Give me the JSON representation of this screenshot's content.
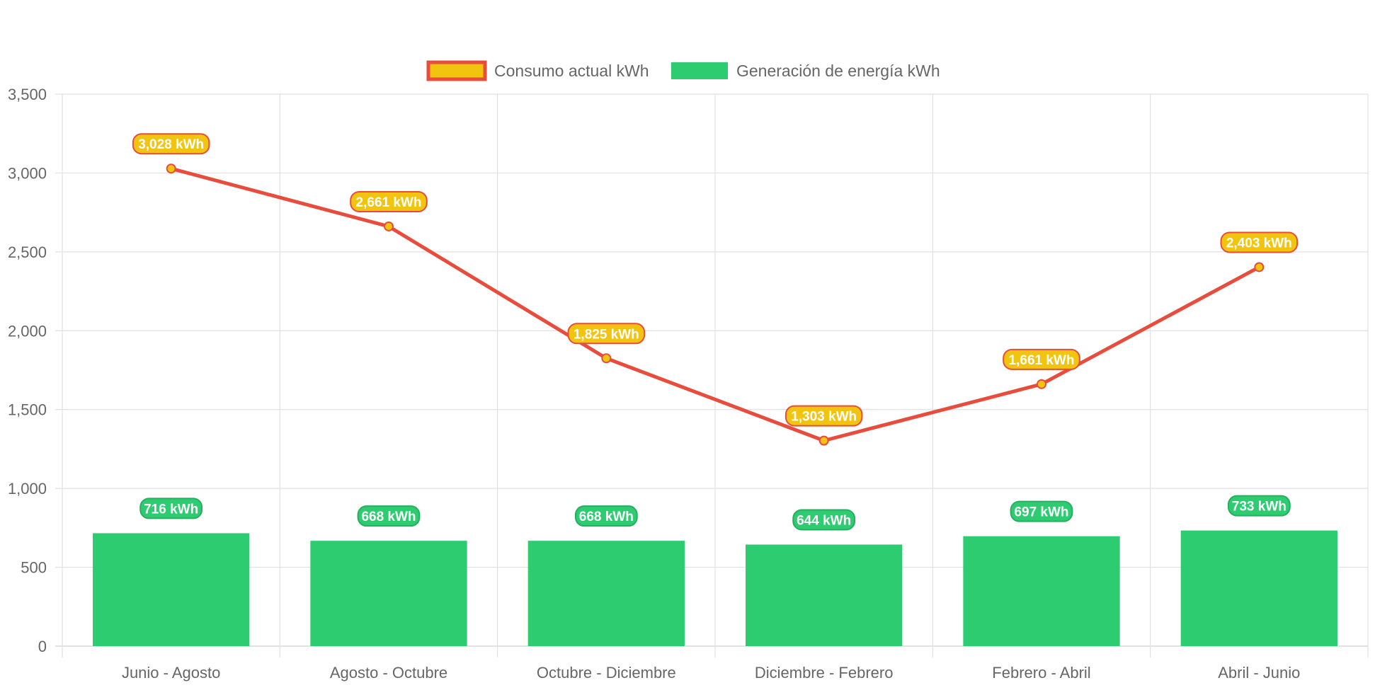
{
  "chart_data": {
    "type": "bar",
    "title": "",
    "xlabel": "",
    "ylabel": "",
    "categories": [
      "Junio - Agosto",
      "Agosto - Octubre",
      "Octubre - Diciembre",
      "Diciembre - Febrero",
      "Febrero - Abril",
      "Abril - Junio"
    ],
    "ylim": [
      0,
      3500
    ],
    "y_ticks": [
      0,
      500,
      1000,
      1500,
      2000,
      2500,
      3000,
      3500
    ],
    "y_tick_labels": [
      "0",
      "500",
      "1,000",
      "1,500",
      "2,000",
      "2,500",
      "3,000",
      "3,500"
    ],
    "grid": true,
    "legend_position": "top",
    "series": [
      {
        "name": "Consumo actual kWh",
        "type": "line",
        "values": [
          3028,
          2661,
          1825,
          1303,
          1661,
          2403
        ],
        "labels": [
          "3,028 kWh",
          "2,661 kWh",
          "1,825 kWh",
          "1,303 kWh",
          "1,661 kWh",
          "2,403 kWh"
        ],
        "line_color": "#e74c3c",
        "fill_color": "#f1c40f"
      },
      {
        "name": "Generación de energía kWh",
        "type": "bar",
        "values": [
          716,
          668,
          668,
          644,
          697,
          733
        ],
        "labels": [
          "716 kWh",
          "668 kWh",
          "668 kWh",
          "644 kWh",
          "697 kWh",
          "733 kWh"
        ],
        "color": "#2ecc71",
        "label_border": "#27ae60"
      }
    ]
  },
  "colors": {
    "grid": "#e1e1e1",
    "axis": "#d0d0d0",
    "text": "#666666"
  }
}
